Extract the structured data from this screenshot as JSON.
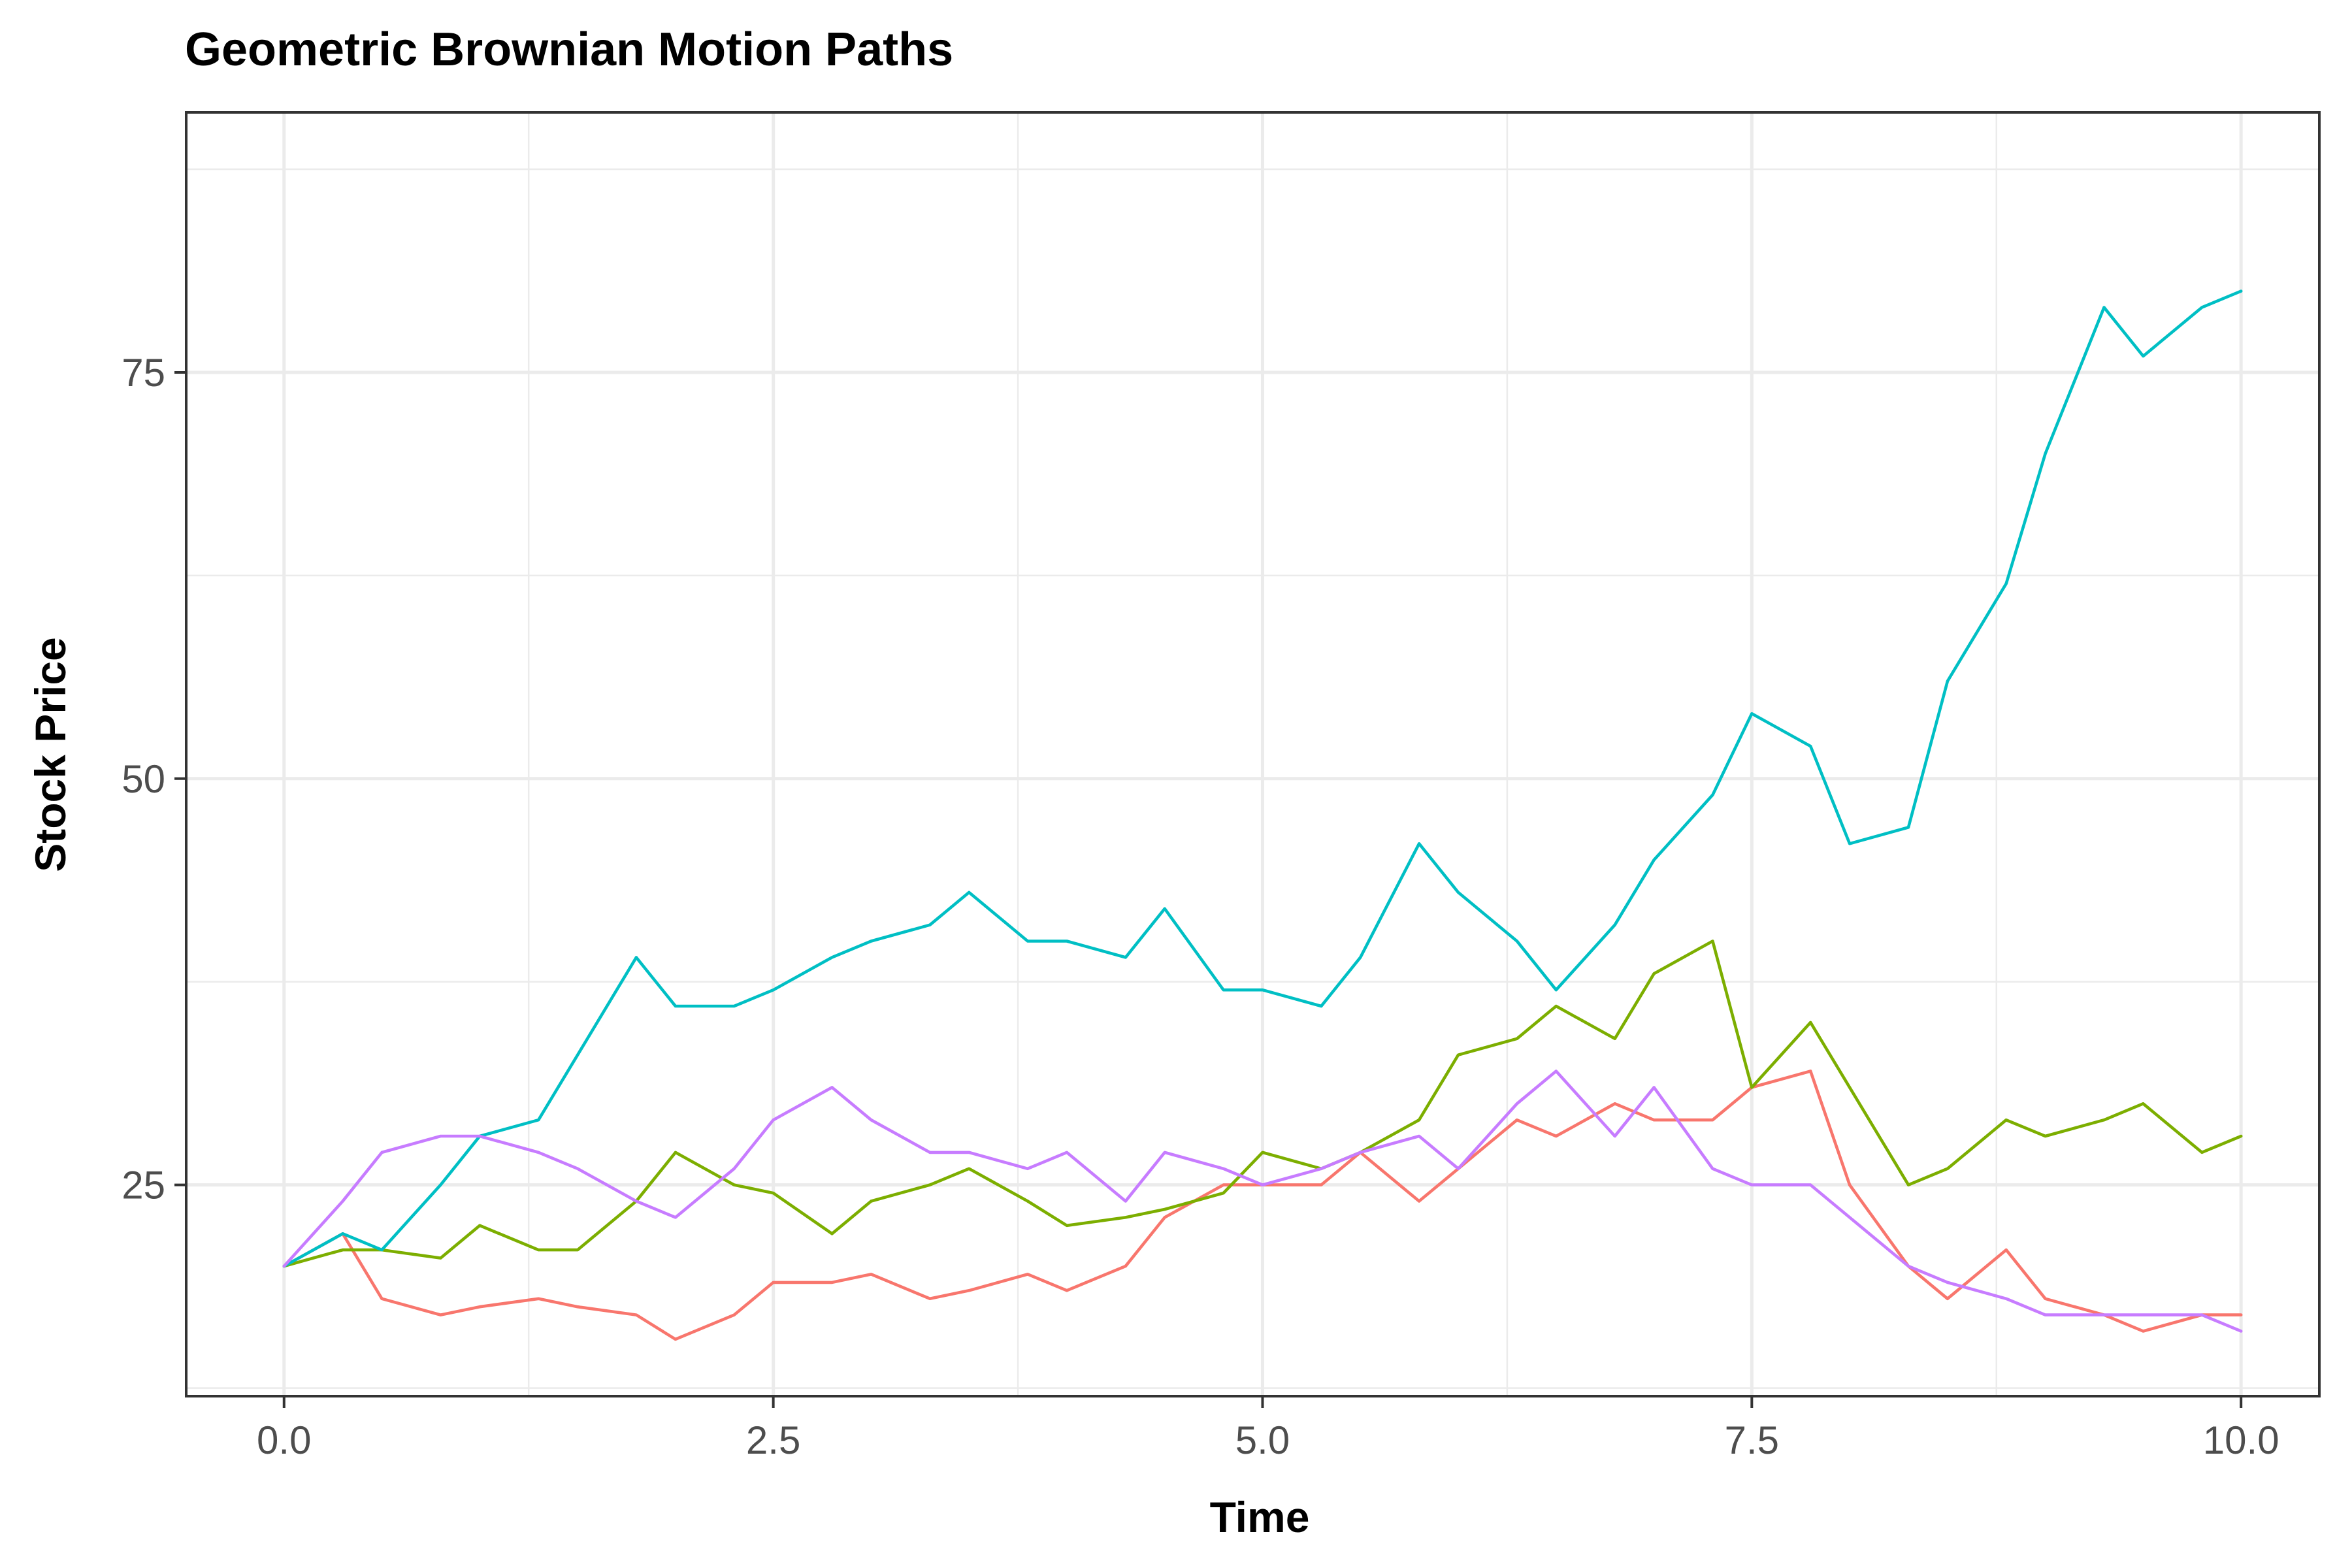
{
  "chart_data": {
    "type": "line",
    "title": "Geometric Brownian Motion Paths",
    "xlabel": "Time",
    "ylabel": "Stock Price",
    "xlim": [
      -0.5,
      10.4
    ],
    "ylim": [
      12,
      91
    ],
    "x_ticks": [
      0.0,
      2.5,
      5.0,
      7.5,
      10.0
    ],
    "x_tick_labels": [
      "0.0",
      "2.5",
      "5.0",
      "7.5",
      "10.0"
    ],
    "y_ticks": [
      25,
      50,
      75
    ],
    "y_tick_labels": [
      "25",
      "50",
      "75"
    ],
    "grid": true,
    "legend": "none",
    "series": [
      {
        "color": "#F8766D",
        "x": [
          0,
          0.3,
          0.5,
          0.8,
          1.0,
          1.3,
          1.5,
          1.8,
          2.0,
          2.3,
          2.5,
          2.8,
          3.0,
          3.3,
          3.5,
          3.8,
          4.0,
          4.3,
          4.5,
          4.8,
          5.0,
          5.3,
          5.5,
          5.8,
          6.0,
          6.3,
          6.5,
          6.8,
          7.0,
          7.3,
          7.5,
          7.8,
          8.0,
          8.3,
          8.5,
          8.8,
          9.0,
          9.3,
          9.5,
          9.8,
          10.0
        ],
        "values": [
          20,
          22,
          18,
          17,
          17.5,
          18,
          17.5,
          17,
          15.5,
          17,
          19,
          19,
          19.5,
          18,
          18.5,
          19.5,
          18.5,
          20,
          23,
          25,
          25,
          25,
          27,
          24,
          26,
          29,
          28,
          30,
          29,
          29,
          31,
          32,
          25,
          20,
          18,
          21,
          18,
          17,
          16,
          17,
          17
        ]
      },
      {
        "color": "#7CAE00",
        "x": [
          0,
          0.3,
          0.5,
          0.8,
          1.0,
          1.3,
          1.5,
          1.8,
          2.0,
          2.3,
          2.5,
          2.8,
          3.0,
          3.3,
          3.5,
          3.8,
          4.0,
          4.3,
          4.5,
          4.8,
          5.0,
          5.3,
          5.5,
          5.8,
          6.0,
          6.3,
          6.5,
          6.8,
          7.0,
          7.3,
          7.5,
          7.8,
          8.0,
          8.3,
          8.5,
          8.8,
          9.0,
          9.3,
          9.5,
          9.8,
          10.0
        ],
        "values": [
          20,
          21,
          21,
          20.5,
          22.5,
          21,
          21,
          24,
          27,
          25,
          24.5,
          22,
          24,
          25,
          26,
          24,
          22.5,
          23,
          23.5,
          24.5,
          27,
          26,
          27,
          29,
          33,
          34,
          36,
          34,
          38,
          40,
          31,
          35,
          31,
          25,
          26,
          29,
          28,
          29,
          30,
          27,
          28
        ]
      },
      {
        "color": "#00BFC4",
        "x": [
          0,
          0.3,
          0.5,
          0.8,
          1.0,
          1.3,
          1.5,
          1.8,
          2.0,
          2.3,
          2.5,
          2.8,
          3.0,
          3.3,
          3.5,
          3.8,
          4.0,
          4.3,
          4.5,
          4.8,
          5.0,
          5.3,
          5.5,
          5.8,
          6.0,
          6.3,
          6.5,
          6.8,
          7.0,
          7.3,
          7.5,
          7.8,
          8.0,
          8.3,
          8.5,
          8.8,
          9.0,
          9.3,
          9.5,
          9.8,
          10.0
        ],
        "values": [
          20,
          22,
          21,
          25,
          28,
          29,
          33,
          39,
          36,
          36,
          37,
          39,
          40,
          41,
          43,
          40,
          40,
          39,
          42,
          37,
          37,
          36,
          39,
          46,
          43,
          40,
          37,
          41,
          45,
          49,
          54,
          52,
          46,
          47,
          56,
          62,
          70,
          79,
          76,
          79,
          80
        ]
      },
      {
        "color": "#C77CFF",
        "x": [
          0,
          0.3,
          0.5,
          0.8,
          1.0,
          1.3,
          1.5,
          1.8,
          2.0,
          2.3,
          2.5,
          2.8,
          3.0,
          3.3,
          3.5,
          3.8,
          4.0,
          4.3,
          4.5,
          4.8,
          5.0,
          5.3,
          5.5,
          5.8,
          6.0,
          6.3,
          6.5,
          6.8,
          7.0,
          7.3,
          7.5,
          7.8,
          8.0,
          8.3,
          8.5,
          8.8,
          9.0,
          9.3,
          9.5,
          9.8,
          10.0
        ],
        "values": [
          20,
          24,
          27,
          28,
          28,
          27,
          26,
          24,
          23,
          26,
          29,
          31,
          29,
          27,
          27,
          26,
          27,
          24,
          27,
          26,
          25,
          26,
          27,
          28,
          26,
          30,
          32,
          28,
          31,
          26,
          25,
          25,
          23,
          20,
          19,
          18,
          17,
          17,
          17,
          17,
          16
        ]
      }
    ]
  }
}
